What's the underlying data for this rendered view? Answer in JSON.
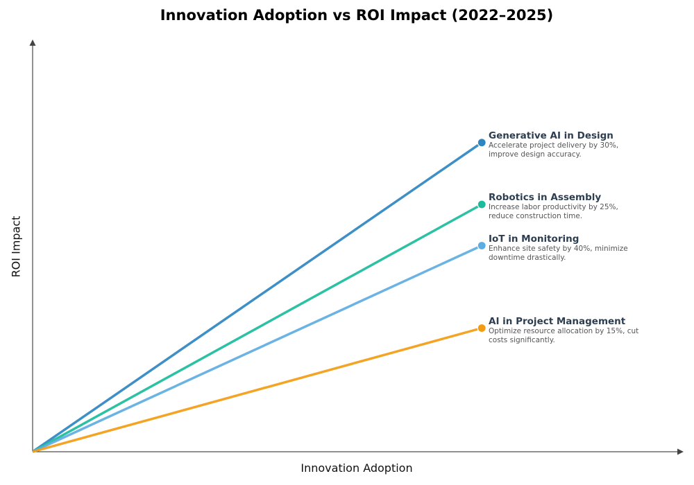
{
  "chart_data": {
    "type": "line",
    "title": "Innovation Adoption vs ROI Impact (2022–2025)",
    "xlabel": "Innovation Adoption",
    "ylabel": "ROI Impact",
    "xlim": [
      0,
      1
    ],
    "ylim": [
      0,
      1
    ],
    "grid": false,
    "ticks": false,
    "series": [
      {
        "name": "Generative AI in Design",
        "description": "Accelerate project delivery by 30%, improve design accuracy.",
        "color": "#2e86c1",
        "x": [
          0,
          0.69
        ],
        "y": [
          0,
          0.75
        ]
      },
      {
        "name": "Robotics in Assembly",
        "description": "Increase labor productivity by 25%, reduce construction time.",
        "color": "#1abc9c",
        "x": [
          0,
          0.69
        ],
        "y": [
          0,
          0.6
        ]
      },
      {
        "name": "IoT in Monitoring",
        "description": "Enhance site safety by 40%, minimize downtime drastically.",
        "color": "#5dade2",
        "x": [
          0,
          0.69
        ],
        "y": [
          0,
          0.5
        ]
      },
      {
        "name": "AI in Project Management",
        "description": "Optimize resource allocation by 15%, cut costs significantly.",
        "color": "#f39c12",
        "x": [
          0,
          0.69
        ],
        "y": [
          0,
          0.3
        ]
      }
    ]
  }
}
